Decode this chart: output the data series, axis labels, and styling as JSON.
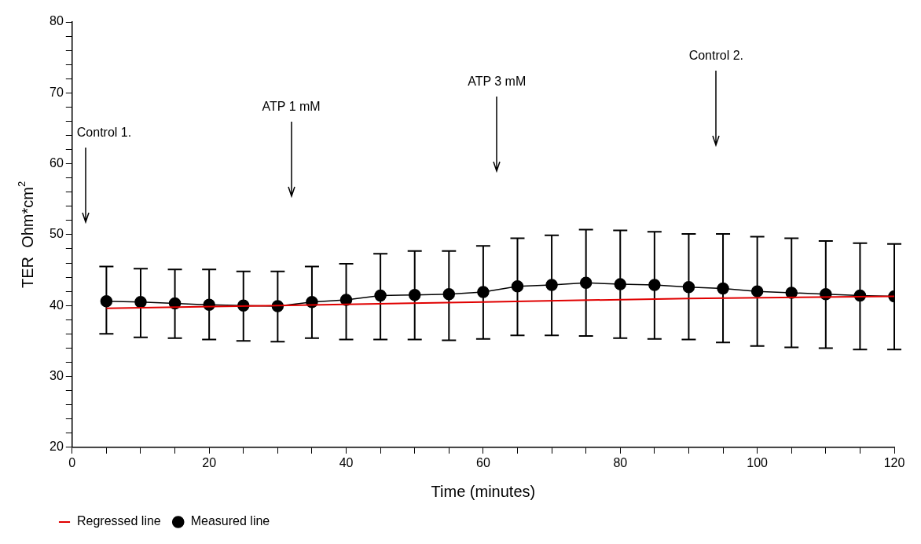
{
  "chart_data": {
    "type": "line",
    "xlabel": "Time (minutes)",
    "ylabel": "TER  Ohm*cm$^{2}$",
    "xlim": [
      0,
      120
    ],
    "ylim": [
      20,
      80
    ],
    "xticks": [
      0,
      {
        "value": 5,
        "label": null
      },
      {
        "value": 10,
        "label": null
      },
      {
        "value": 15,
        "label": null
      },
      20,
      {
        "value": 25,
        "label": null
      },
      {
        "value": 30,
        "label": null
      },
      {
        "value": 35,
        "label": null
      },
      40,
      {
        "value": 45,
        "label": null
      },
      {
        "value": 50,
        "label": null
      },
      {
        "value": 55,
        "label": null
      },
      60,
      {
        "value": 65,
        "label": null
      },
      {
        "value": 70,
        "label": null
      },
      {
        "value": 75,
        "label": null
      },
      80,
      {
        "value": 85,
        "label": null
      },
      {
        "value": 90,
        "label": null
      },
      {
        "value": 95,
        "label": null
      },
      100,
      {
        "value": 105,
        "label": null
      },
      {
        "value": 110,
        "label": null
      },
      {
        "value": 115,
        "label": null
      },
      120
    ],
    "yticks": [
      20,
      {
        "value": 22,
        "label": null
      },
      {
        "value": 24,
        "label": null
      },
      {
        "value": 26,
        "label": null
      },
      {
        "value": 28,
        "label": null
      },
      30,
      {
        "value": 32,
        "label": null
      },
      {
        "value": 34,
        "label": null
      },
      {
        "value": 36,
        "label": null
      },
      {
        "value": 38,
        "label": null
      },
      40,
      {
        "value": 42,
        "label": null
      },
      {
        "value": 44,
        "label": null
      },
      {
        "value": 46,
        "label": null
      },
      {
        "value": 48,
        "label": null
      },
      50,
      {
        "value": 52,
        "label": null
      },
      {
        "value": 54,
        "label": null
      },
      {
        "value": 56,
        "label": null
      },
      {
        "value": 58,
        "label": null
      },
      60,
      {
        "value": 62,
        "label": null
      },
      {
        "value": 64,
        "label": null
      },
      {
        "value": 66,
        "label": null
      },
      {
        "value": 68,
        "label": null
      },
      70,
      {
        "value": 72,
        "label": null
      },
      {
        "value": 74,
        "label": null
      },
      {
        "value": 76,
        "label": null
      },
      {
        "value": 78,
        "label": null
      },
      80
    ],
    "grid": false,
    "legend": "bottom left",
    "line_style": "solid",
    "series": [
      {
        "name": "Measured line",
        "color": "#000000",
        "marker": "circle",
        "x": [
          5,
          10,
          15,
          20,
          25,
          30,
          35,
          40,
          45,
          50,
          55,
          60,
          65,
          70,
          75,
          80,
          85,
          90,
          95,
          100,
          105,
          110,
          115,
          120
        ],
        "values": [
          40.6,
          40.5,
          40.3,
          40.1,
          40.0,
          39.9,
          40.5,
          40.8,
          41.4,
          41.5,
          41.6,
          41.9,
          42.7,
          42.9,
          43.2,
          43.0,
          42.9,
          42.6,
          42.4,
          42.0,
          41.8,
          41.6,
          41.4,
          41.3
        ],
        "errors": [
          [
            36.0,
            45.5
          ],
          [
            35.5,
            45.2
          ],
          [
            35.4,
            45.1
          ],
          [
            35.2,
            45.1
          ],
          [
            35.0,
            44.8
          ],
          [
            34.9,
            44.8
          ],
          [
            35.4,
            45.5
          ],
          [
            35.2,
            45.9
          ],
          [
            35.2,
            47.3
          ],
          [
            35.2,
            47.7
          ],
          [
            35.1,
            47.7
          ],
          [
            35.3,
            48.4
          ],
          [
            35.8,
            49.5
          ],
          [
            35.8,
            49.9
          ],
          [
            35.7,
            50.7
          ],
          [
            35.4,
            50.6
          ],
          [
            35.3,
            50.4
          ],
          [
            35.2,
            50.1
          ],
          [
            34.8,
            50.1
          ],
          [
            34.3,
            49.7
          ],
          [
            34.1,
            49.5
          ],
          [
            34.0,
            49.1
          ],
          [
            33.8,
            48.8
          ],
          [
            33.8,
            48.7
          ]
        ]
      },
      {
        "name": "Regressed line",
        "color": "#e00000",
        "marker": "none",
        "x": [
          5,
          30,
          60,
          90,
          120
        ],
        "values": [
          39.6,
          40.0,
          40.5,
          41.0,
          41.3
        ]
      }
    ],
    "ref_lines": [
      {
        "axis": "x",
        "value": 2,
        "label": "Control 1."
      },
      {
        "axis": "x",
        "value": 32,
        "label": "ATP 1 mM"
      },
      {
        "axis": "x",
        "value": 62,
        "label": "ATP 3 mM"
      },
      {
        "axis": "x",
        "value": 94,
        "label": "Control 2."
      }
    ]
  }
}
